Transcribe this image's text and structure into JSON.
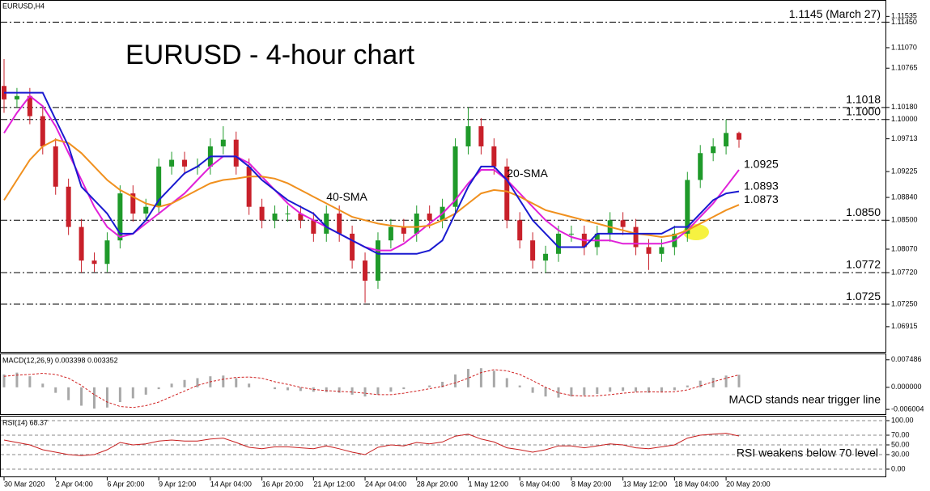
{
  "chart_data": {
    "type": "candlestick",
    "symbol": "EURUSD,H4",
    "title": "EURUSD - 4-hour chart",
    "categories": [
      "30 Mar 2020",
      null,
      null,
      null,
      "2 Apr 04:00",
      null,
      null,
      null,
      "6 Apr 20:00",
      null,
      null,
      null,
      "9 Apr 12:00",
      null,
      null,
      null,
      "14 Apr 04:00",
      null,
      null,
      null,
      "16 Apr 20:00",
      null,
      null,
      null,
      "21 Apr 12:00",
      null,
      null,
      null,
      "24 Apr 04:00",
      null,
      null,
      null,
      "28 Apr 20:00",
      null,
      null,
      null,
      "1 May 12:00",
      null,
      null,
      null,
      "6 May 04:00",
      null,
      null,
      null,
      "8 May 20:00",
      null,
      null,
      null,
      "13 May 12:00",
      null,
      null,
      null,
      "18 May 04:00",
      null,
      null,
      null,
      "20 May 20:00",
      null
    ],
    "open": [
      1.105,
      1.103,
      1.1035,
      1.1005,
      1.096,
      1.09,
      1.084,
      1.079,
      1.0785,
      1.082,
      1.089,
      1.086,
      1.087,
      1.093,
      1.094,
      1.093,
      1.093,
      1.096,
      1.097,
      1.093,
      1.087,
      1.085,
      1.086,
      1.086,
      1.085,
      1.083,
      1.086,
      1.083,
      1.079,
      1.076,
      1.082,
      1.084,
      1.083,
      1.086,
      1.085,
      1.087,
      1.096,
      1.099,
      1.096,
      1.093,
      1.085,
      1.082,
      1.079,
      1.08,
      1.083,
      1.083,
      1.081,
      1.083,
      1.085,
      1.084,
      1.081,
      1.08,
      1.081,
      1.083,
      1.091,
      1.095,
      1.096,
      1.098
    ],
    "high": [
      1.109,
      1.1047,
      1.1047,
      1.1017,
      1.0972,
      1.0912,
      1.0852,
      1.0802,
      1.0832,
      1.0902,
      1.0902,
      1.0882,
      1.0942,
      1.0952,
      1.0952,
      1.0942,
      1.0972,
      1.099,
      1.0982,
      1.0942,
      1.0882,
      1.0872,
      1.0872,
      1.0872,
      1.0862,
      1.0872,
      1.0872,
      1.0842,
      1.0802,
      1.0832,
      1.0852,
      1.0852,
      1.0872,
      1.0872,
      1.0882,
      1.0972,
      1.1018,
      1.1002,
      1.0972,
      1.0942,
      1.0862,
      1.0832,
      1.0812,
      1.0842,
      1.0842,
      1.0842,
      1.0842,
      1.0862,
      1.0862,
      1.0852,
      1.0822,
      1.0822,
      1.0842,
      1.0922,
      1.0962,
      1.0972,
      1.1,
      1.0982
    ],
    "low": [
      1.101,
      1.1018,
      1.0993,
      1.0948,
      1.0888,
      1.0828,
      1.0772,
      1.0773,
      1.0773,
      1.0808,
      1.0848,
      1.0848,
      1.0858,
      1.0918,
      1.0918,
      1.0918,
      1.0918,
      1.0948,
      1.0918,
      1.0858,
      1.0838,
      1.0838,
      1.0848,
      1.0838,
      1.0818,
      1.0818,
      1.0818,
      1.0778,
      1.0727,
      1.0748,
      1.0808,
      1.0818,
      1.0818,
      1.0838,
      1.0838,
      1.0858,
      1.0948,
      1.0948,
      1.0918,
      1.0838,
      1.0808,
      1.0778,
      1.0772,
      1.0788,
      1.0818,
      1.0798,
      1.0798,
      1.0818,
      1.0828,
      1.0798,
      1.0776,
      1.0788,
      1.0798,
      1.0818,
      1.0898,
      1.0938,
      1.0948,
      1.0958
    ],
    "close": [
      1.103,
      1.1035,
      1.1005,
      1.096,
      1.09,
      1.084,
      1.079,
      1.0785,
      1.082,
      1.089,
      1.086,
      1.087,
      1.093,
      1.094,
      1.093,
      1.093,
      1.096,
      1.097,
      1.093,
      1.087,
      1.085,
      1.086,
      1.086,
      1.085,
      1.083,
      1.086,
      1.083,
      1.079,
      1.076,
      1.082,
      1.084,
      1.083,
      1.086,
      1.085,
      1.087,
      1.096,
      1.099,
      1.096,
      1.093,
      1.085,
      1.082,
      1.079,
      1.08,
      1.083,
      1.083,
      1.081,
      1.083,
      1.085,
      1.084,
      1.081,
      1.08,
      1.081,
      1.083,
      1.091,
      1.095,
      1.096,
      1.098,
      1.097
    ],
    "up_color": "#1f9a2a",
    "down_color": "#c8202a",
    "ylim": [
      1.0654,
      1.1178
    ],
    "yticks": [
      1.11535,
      {
        "value": 1.1145,
        "label": "1.11450"
      },
      {
        "value": 1.1107,
        "label": "1.11070"
      },
      1.10765,
      {
        "value": 1.1018,
        "label": "1.10180"
      },
      {
        "value": 1.1,
        "label": "1.10000"
      },
      1.09713,
      1.09225,
      {
        "value": 1.0884,
        "label": "1.08840"
      },
      {
        "value": 1.085,
        "label": "1.08500"
      },
      {
        "value": 1.0807,
        "label": "1.08070"
      },
      {
        "value": 1.0772,
        "label": "1.07720"
      },
      {
        "value": 1.0725,
        "label": "1.07250"
      },
      1.06915
    ],
    "levels": [
      {
        "value": 1.1145,
        "label": "1.1145 (March 27)",
        "color": "#e0202a"
      },
      {
        "value": 1.1018,
        "label": "1.1018",
        "color": "#e0202a"
      },
      {
        "value": 1.1,
        "label": "1.1000",
        "color": "#e0202a"
      },
      {
        "value": 1.085,
        "label": "1.0850",
        "color": "#2a8a2a"
      },
      {
        "value": 1.0772,
        "label": "1.0772",
        "color": "#2a8a2a"
      },
      {
        "value": 1.0725,
        "label": "1.0725",
        "color": "#2a8a2a"
      }
    ],
    "series": [
      {
        "name": "20-SMA",
        "color": "#e020d8",
        "values": [
          1.098,
          1.101,
          1.1035,
          1.102,
          1.099,
          1.095,
          1.091,
          1.087,
          1.084,
          1.0825,
          1.083,
          1.0845,
          1.086,
          1.0875,
          1.089,
          1.091,
          1.093,
          1.0945,
          1.0945,
          1.0935,
          1.0915,
          1.0895,
          1.0875,
          1.086,
          1.085,
          1.084,
          1.083,
          1.082,
          1.081,
          1.0805,
          1.0805,
          1.0815,
          1.083,
          1.0845,
          1.086,
          1.088,
          1.0905,
          1.0925,
          1.0925,
          1.091,
          1.089,
          1.087,
          1.085,
          1.0835,
          1.0825,
          1.082,
          1.082,
          1.082,
          1.0815,
          1.0815,
          1.0815,
          1.0815,
          1.082,
          1.0835,
          1.0855,
          1.0875,
          1.09,
          1.0925
        ]
      },
      {
        "name": "40-SMA",
        "color": "#f0901e",
        "values": [
          1.088,
          1.091,
          1.094,
          1.096,
          1.097,
          1.0965,
          1.095,
          1.093,
          1.091,
          1.0895,
          1.0885,
          1.0875,
          1.087,
          1.0875,
          1.0885,
          1.0895,
          1.0905,
          1.091,
          1.0912,
          1.0915,
          1.0915,
          1.0912,
          1.0905,
          1.0895,
          1.0885,
          1.0875,
          1.0865,
          1.0855,
          1.085,
          1.0845,
          1.0842,
          1.084,
          1.084,
          1.0842,
          1.085,
          1.086,
          1.0875,
          1.089,
          1.0895,
          1.0893,
          1.0885,
          1.0875,
          1.0865,
          1.086,
          1.0855,
          1.085,
          1.0845,
          1.084,
          1.0835,
          1.083,
          1.0828,
          1.0825,
          1.0828,
          1.0835,
          1.0845,
          1.0855,
          1.0865,
          1.0873
        ]
      },
      {
        "color": "#1a1ad0",
        "values": [
          1.104,
          1.104,
          1.104,
          1.104,
          1.1,
          1.096,
          1.09,
          1.088,
          1.086,
          1.083,
          1.083,
          1.085,
          1.088,
          1.09,
          1.092,
          1.093,
          1.0945,
          1.0945,
          1.0945,
          1.093,
          1.091,
          1.0895,
          1.088,
          1.087,
          1.086,
          1.084,
          1.083,
          1.082,
          1.081,
          1.08,
          1.08,
          1.08,
          1.08,
          1.0805,
          1.082,
          1.086,
          1.09,
          1.093,
          1.093,
          1.091,
          1.088,
          1.085,
          1.083,
          1.081,
          1.081,
          1.081,
          1.083,
          1.083,
          1.083,
          1.083,
          1.083,
          1.083,
          1.084,
          1.084,
          1.086,
          1.088,
          1.089,
          1.0893
        ]
      }
    ],
    "macd": {
      "label": "MACD(12,26,9) 0.003398 0.003352",
      "annotation": "MACD stands near trigger line",
      "ylim": [
        -0.0073,
        0.0092
      ],
      "yticks": [
        0.007486,
        {
          "value": 0,
          "label": "0.000000"
        },
        -0.006004
      ],
      "histogram_color": "#a8a8a8",
      "signal_color": "#d02020",
      "histogram": [
        0.0035,
        0.004,
        0.003,
        0.001,
        -0.0015,
        -0.0035,
        -0.005,
        -0.0058,
        -0.0055,
        -0.004,
        -0.003,
        -0.002,
        -0.0005,
        0.001,
        0.002,
        0.0025,
        0.003,
        0.0032,
        0.0025,
        0.001,
        0.0,
        -0.0005,
        -0.0008,
        -0.001,
        -0.0012,
        -0.0013,
        -0.0015,
        -0.002,
        -0.0025,
        -0.002,
        -0.0012,
        -0.0005,
        0.0,
        0.0005,
        0.0015,
        0.0035,
        0.005,
        0.0052,
        0.0045,
        0.0025,
        0.0005,
        -0.0015,
        -0.0025,
        -0.0028,
        -0.0025,
        -0.0022,
        -0.0018,
        -0.0012,
        -0.001,
        -0.0012,
        -0.0015,
        -0.0012,
        -0.0008,
        0.0005,
        0.0018,
        0.0026,
        0.0032,
        0.0034
      ],
      "signal": [
        0.003,
        0.0033,
        0.0035,
        0.0038,
        0.0035,
        0.0025,
        0.0005,
        -0.002,
        -0.004,
        -0.0052,
        -0.0055,
        -0.005,
        -0.004,
        -0.0025,
        -0.001,
        0.0005,
        0.0015,
        0.0022,
        0.0027,
        0.0028,
        0.0025,
        0.0015,
        0.0008,
        0.0,
        -0.0006,
        -0.0009,
        -0.0011,
        -0.0013,
        -0.0016,
        -0.002,
        -0.002,
        -0.0016,
        -0.001,
        -0.0004,
        0.0003,
        0.0012,
        0.0025,
        0.004,
        0.0048,
        0.0045,
        0.0035,
        0.0018,
        0.0,
        -0.0015,
        -0.0022,
        -0.0024,
        -0.0023,
        -0.002,
        -0.0016,
        -0.0013,
        -0.0012,
        -0.0013,
        -0.0012,
        -0.0007,
        0.0004,
        0.0015,
        0.0025,
        0.0034
      ]
    },
    "rsi": {
      "label": "RSI(14) 68.37",
      "annotation": "RSI weakens below 70 level",
      "ylim": [
        -16.7,
        110
      ],
      "yticks": [
        {
          "value": 100,
          "label": "100.00"
        },
        {
          "value": 70,
          "label": "70.00"
        },
        {
          "value": 50,
          "label": "50.00"
        },
        {
          "value": 30,
          "label": "30.00"
        },
        {
          "value": 0,
          "label": "0.00"
        }
      ],
      "grid": true,
      "color": "#c81e1e",
      "values": [
        60,
        55,
        50,
        40,
        35,
        30,
        28,
        30,
        40,
        55,
        50,
        52,
        58,
        60,
        58,
        58,
        62,
        64,
        55,
        45,
        42,
        46,
        46,
        44,
        42,
        48,
        42,
        35,
        30,
        45,
        50,
        48,
        55,
        52,
        56,
        68,
        72,
        62,
        56,
        44,
        40,
        35,
        40,
        48,
        48,
        44,
        48,
        52,
        50,
        44,
        42,
        46,
        50,
        64,
        70,
        72,
        74,
        68.37
      ]
    }
  }
}
